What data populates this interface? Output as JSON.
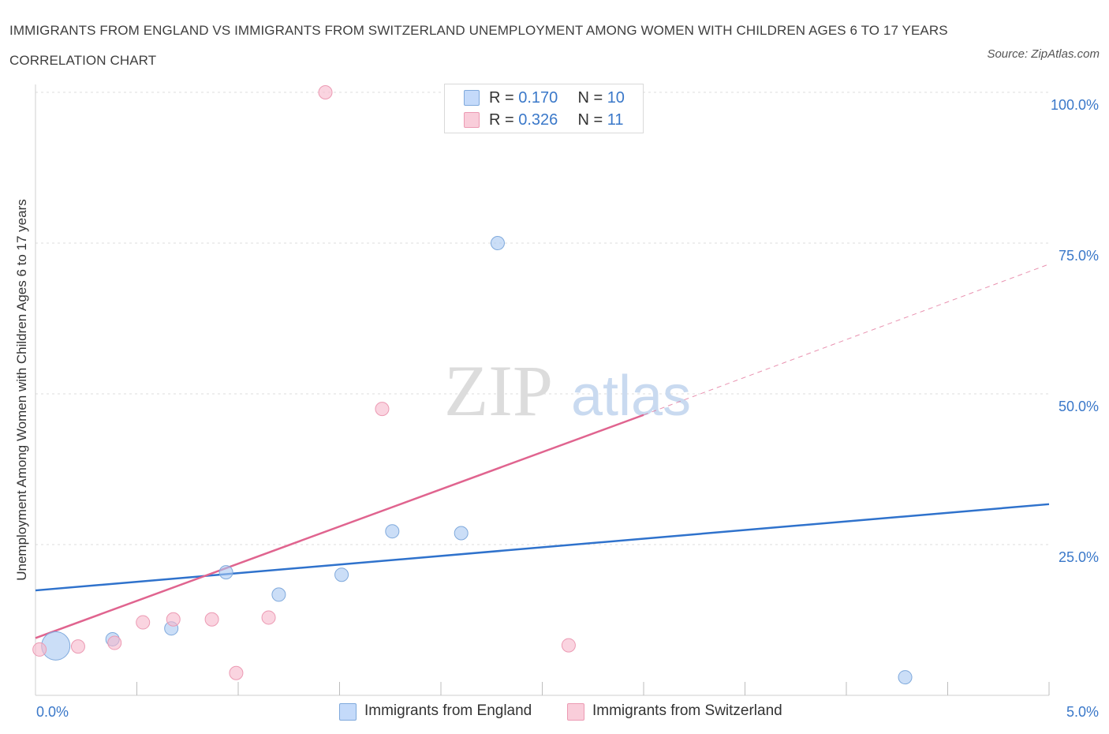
{
  "header": {
    "title": "IMMIGRANTS FROM ENGLAND VS IMMIGRANTS FROM SWITZERLAND UNEMPLOYMENT AMONG WOMEN WITH CHILDREN AGES 6 TO 17 YEARS CORRELATION CHART",
    "source": "Source: ZipAtlas.com"
  },
  "watermark": {
    "zip": "ZIP",
    "atlas": "atlas"
  },
  "legend": {
    "england": {
      "r_label": "R = ",
      "r_value": "0.170",
      "n_label": "N = ",
      "n_value": "10",
      "color": "#a9c8f2"
    },
    "switzerland": {
      "r_label": "R = ",
      "r_value": "0.326",
      "n_label": "N = ",
      "n_value": "11",
      "color": "#f6b8cb"
    }
  },
  "bottom_legend": {
    "england": "Immigrants from England",
    "switzerland": "Immigrants from Switzerland"
  },
  "chart_data": {
    "type": "scatter",
    "title": "IMMIGRANTS FROM ENGLAND VS IMMIGRANTS FROM SWITZERLAND UNEMPLOYMENT AMONG WOMEN WITH CHILDREN AGES 6 TO 17 YEARS CORRELATION CHART",
    "xlabel": "",
    "ylabel": "Unemployment Among Women with Children Ages 6 to 17 years",
    "xlim": [
      0,
      5
    ],
    "ylim": [
      0,
      100
    ],
    "x_tick_labels": [
      "0.0%",
      "5.0%"
    ],
    "y_tick_values": [
      25,
      50,
      75,
      100
    ],
    "y_tick_labels": [
      "25.0%",
      "50.0%",
      "75.0%",
      "100.0%"
    ],
    "grid": true,
    "legend_position": "top-center",
    "series": [
      {
        "name": "Immigrants from England",
        "color": "#a9c8f2",
        "stroke": "#7fa9dc",
        "trend_color": "#2f72cc",
        "trend": {
          "x0": 0,
          "y0": 17.4,
          "x1": 5,
          "y1": 31.7
        },
        "points": [
          {
            "x": 0.1,
            "y": 8.2,
            "big": true
          },
          {
            "x": 0.38,
            "y": 9.3
          },
          {
            "x": 0.67,
            "y": 11.1
          },
          {
            "x": 0.94,
            "y": 20.4
          },
          {
            "x": 1.2,
            "y": 16.7
          },
          {
            "x": 1.51,
            "y": 20.0
          },
          {
            "x": 1.76,
            "y": 27.2
          },
          {
            "x": 2.1,
            "y": 26.9
          },
          {
            "x": 2.28,
            "y": 75.0
          },
          {
            "x": 4.29,
            "y": 3.0
          }
        ]
      },
      {
        "name": "Immigrants from Switzerland",
        "color": "#f6b8cb",
        "stroke": "#ec9ab3",
        "trend_color": "#e0648f",
        "trend": {
          "x0": 0,
          "y0": 9.5,
          "x1": 3.0,
          "y1": 46.5,
          "dash_to_x": 5,
          "dash_to_y": 71.5
        },
        "points": [
          {
            "x": 0.02,
            "y": 7.6
          },
          {
            "x": 0.21,
            "y": 8.1
          },
          {
            "x": 0.39,
            "y": 8.7
          },
          {
            "x": 0.53,
            "y": 12.1
          },
          {
            "x": 0.68,
            "y": 12.6
          },
          {
            "x": 0.87,
            "y": 12.6
          },
          {
            "x": 0.99,
            "y": 3.7
          },
          {
            "x": 1.15,
            "y": 12.9
          },
          {
            "x": 1.43,
            "y": 100.0
          },
          {
            "x": 1.71,
            "y": 47.5
          },
          {
            "x": 2.63,
            "y": 8.3
          }
        ]
      }
    ]
  }
}
